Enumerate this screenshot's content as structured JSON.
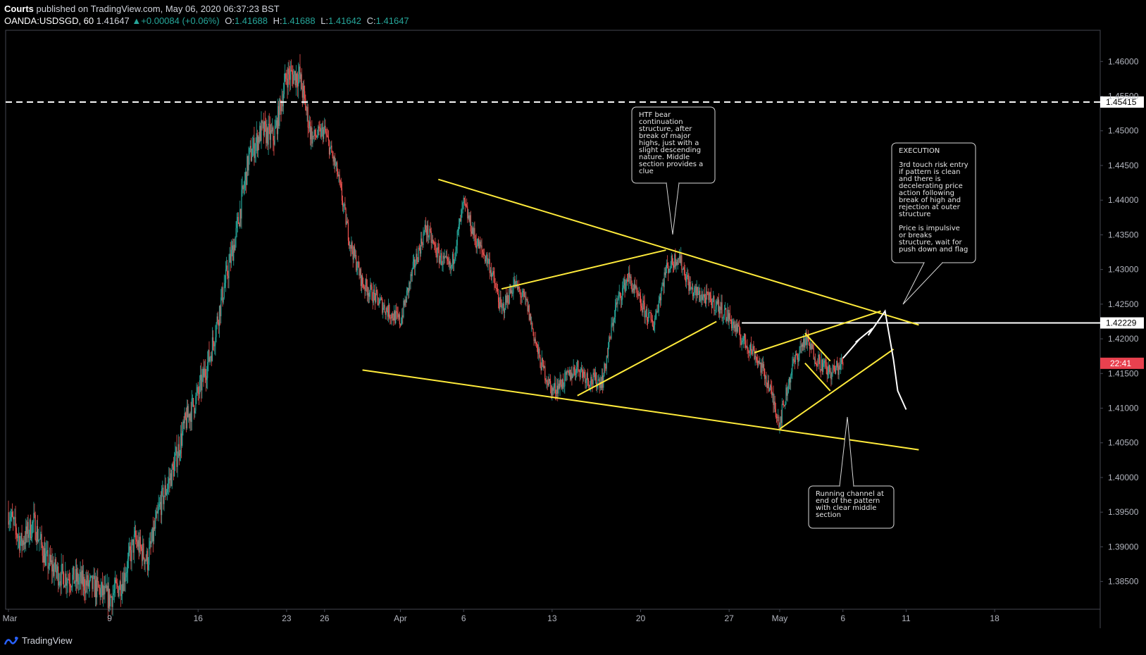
{
  "header": {
    "author": "Courts",
    "published": "published on TradingView.com, May 06, 2020 06:37:23 BST",
    "symbol": "OANDA:USDSGD, 60",
    "last": "1.41647",
    "change": "+0.00084 (+0.06%)",
    "o_label": "O:",
    "o": "1.41688",
    "h_label": "H:",
    "h": "1.41688",
    "l_label": "L:",
    "l": "1.41642",
    "c_label": "C:",
    "c": "1.41647"
  },
  "footer": {
    "brand": "TradingView"
  },
  "colors": {
    "bg": "#000000",
    "up": "#26a69a",
    "down": "#ef5350",
    "trend": "#ffeb3b",
    "label_red": "#e8414f"
  },
  "chart_data": {
    "type": "candlestick",
    "ylim": [
      1.381,
      1.4645
    ],
    "yticks": [
      "1.46000",
      "1.45500",
      "1.45000",
      "1.44500",
      "1.44000",
      "1.43500",
      "1.43000",
      "1.42500",
      "1.42000",
      "1.41500",
      "1.41000",
      "1.40500",
      "1.40000",
      "1.39500",
      "1.39000",
      "1.38500"
    ],
    "xticks": [
      {
        "label": "Mar",
        "date": "2020-03-01"
      },
      {
        "label": "9",
        "date": "2020-03-09"
      },
      {
        "label": "16",
        "date": "2020-03-16"
      },
      {
        "label": "23",
        "date": "2020-03-23"
      },
      {
        "label": "26",
        "date": "2020-03-26"
      },
      {
        "label": "Apr",
        "date": "2020-04-01"
      },
      {
        "label": "6",
        "date": "2020-04-06"
      },
      {
        "label": "13",
        "date": "2020-04-13"
      },
      {
        "label": "20",
        "date": "2020-04-20"
      },
      {
        "label": "27",
        "date": "2020-04-27"
      },
      {
        "label": "May",
        "date": "2020-05-01"
      },
      {
        "label": "6",
        "date": "2020-05-06"
      },
      {
        "label": "11",
        "date": "2020-05-11"
      },
      {
        "label": "18",
        "date": "2020-05-18"
      }
    ],
    "price_path": [
      [
        "2020-03-01",
        1.395
      ],
      [
        "2020-03-02",
        1.3905
      ],
      [
        "2020-03-03",
        1.3935
      ],
      [
        "2020-03-04",
        1.388
      ],
      [
        "2020-03-05",
        1.386
      ],
      [
        "2020-03-06",
        1.3855
      ],
      [
        "2020-03-08",
        1.384
      ],
      [
        "2020-03-09",
        1.3825
      ],
      [
        "2020-03-10",
        1.385
      ],
      [
        "2020-03-11",
        1.391
      ],
      [
        "2020-03-12",
        1.388
      ],
      [
        "2020-03-13",
        1.396
      ],
      [
        "2020-03-14",
        1.401
      ],
      [
        "2020-03-15",
        1.408
      ],
      [
        "2020-03-16",
        1.412
      ],
      [
        "2020-03-17",
        1.418
      ],
      [
        "2020-03-18",
        1.427
      ],
      [
        "2020-03-19",
        1.435
      ],
      [
        "2020-03-20",
        1.446
      ],
      [
        "2020-03-21",
        1.45
      ],
      [
        "2020-03-22",
        1.449
      ],
      [
        "2020-03-23",
        1.458
      ],
      [
        "2020-03-24",
        1.458
      ],
      [
        "2020-03-25",
        1.449
      ],
      [
        "2020-03-26",
        1.45
      ],
      [
        "2020-03-27",
        1.444
      ],
      [
        "2020-03-28",
        1.434
      ],
      [
        "2020-03-29",
        1.428
      ],
      [
        "2020-03-30",
        1.426
      ],
      [
        "2020-03-31",
        1.424
      ],
      [
        "2020-04-01",
        1.4225
      ],
      [
        "2020-04-02",
        1.43
      ],
      [
        "2020-04-03",
        1.436
      ],
      [
        "2020-04-04",
        1.432
      ],
      [
        "2020-04-05",
        1.43
      ],
      [
        "2020-04-06",
        1.4395
      ],
      [
        "2020-04-07",
        1.434
      ],
      [
        "2020-04-08",
        1.431
      ],
      [
        "2020-04-09",
        1.424
      ],
      [
        "2020-04-10",
        1.428
      ],
      [
        "2020-04-11",
        1.425
      ],
      [
        "2020-04-12",
        1.417
      ],
      [
        "2020-04-13",
        1.4125
      ],
      [
        "2020-04-14",
        1.414
      ],
      [
        "2020-04-15",
        1.416
      ],
      [
        "2020-04-16",
        1.414
      ],
      [
        "2020-04-17",
        1.414
      ],
      [
        "2020-04-18",
        1.4245
      ],
      [
        "2020-04-19",
        1.429
      ],
      [
        "2020-04-20",
        1.425
      ],
      [
        "2020-04-21",
        1.422
      ],
      [
        "2020-04-22",
        1.43
      ],
      [
        "2020-04-23",
        1.432
      ],
      [
        "2020-04-24",
        1.427
      ],
      [
        "2020-04-25",
        1.426
      ],
      [
        "2020-04-26",
        1.425
      ],
      [
        "2020-04-27",
        1.423
      ],
      [
        "2020-04-28",
        1.42
      ],
      [
        "2020-04-29",
        1.418
      ],
      [
        "2020-04-30",
        1.414
      ],
      [
        "2020-05-01",
        1.408
      ],
      [
        "2020-05-02",
        1.416
      ],
      [
        "2020-05-03",
        1.42
      ],
      [
        "2020-05-04",
        1.417
      ],
      [
        "2020-05-05",
        1.415
      ],
      [
        "2020-05-06",
        1.41647
      ]
    ],
    "last_price": "1.41647",
    "countdown": "22:41",
    "horizontal_levels": [
      {
        "price": 1.45415,
        "label": "1.45415",
        "style": "dashed"
      },
      {
        "price": 1.42229,
        "label": "1.42229",
        "style": "solid"
      }
    ],
    "trendlines": [
      [
        [
          "2020-04-04",
          1.443
        ],
        [
          "2020-05-12",
          1.422
        ]
      ],
      [
        [
          "2020-03-29",
          1.4155
        ],
        [
          "2020-05-12",
          1.404
        ]
      ],
      [
        [
          "2020-04-09",
          1.4272
        ],
        [
          "2020-04-22",
          1.4328
        ]
      ],
      [
        [
          "2020-04-15",
          1.4118
        ],
        [
          "2020-04-26",
          1.4225
        ]
      ],
      [
        [
          "2020-04-29",
          1.418
        ],
        [
          "2020-05-09",
          1.424
        ]
      ],
      [
        [
          "2020-05-01",
          1.407
        ],
        [
          "2020-05-10",
          1.4185
        ]
      ],
      [
        [
          "2020-05-03",
          1.4208
        ],
        [
          "2020-05-05",
          1.4168
        ]
      ],
      [
        [
          "2020-05-03",
          1.4165
        ],
        [
          "2020-05-05",
          1.4125
        ]
      ]
    ],
    "projection": [
      [
        "2020-05-06",
        1.4172
      ],
      [
        "2020-05-07",
        1.42
      ],
      [
        "2020-05-07",
        1.4195
      ],
      [
        "2020-05-08",
        1.4215
      ],
      [
        "2020-05-08",
        1.4205
      ],
      [
        "2020-05-09",
        1.424
      ],
      [
        "2020-05-10",
        1.417
      ],
      [
        "2020-05-10",
        1.4125
      ],
      [
        "2020-05-11",
        1.4098
      ]
    ],
    "annotations": [
      {
        "name": "htf-note",
        "lines": [
          "HTF bear",
          "continuation",
          "structure, after",
          "break of major",
          "highs, just with a",
          "slight descending",
          "nature. Middle",
          "section provides a",
          "clue"
        ]
      },
      {
        "name": "execution-note",
        "lines": [
          "EXECUTION",
          "",
          "3rd touch risk entry",
          "if pattern is clean",
          "and there is",
          "decelerating price",
          "action following",
          "break of high and",
          "rejection at outer",
          "structure",
          "",
          "Price is impulsive",
          "or breaks",
          "structure, wait for",
          "push down and flag"
        ]
      },
      {
        "name": "channel-note",
        "lines": [
          "Running channel at",
          "end of the pattern",
          "with clear middle",
          "section"
        ]
      }
    ]
  }
}
